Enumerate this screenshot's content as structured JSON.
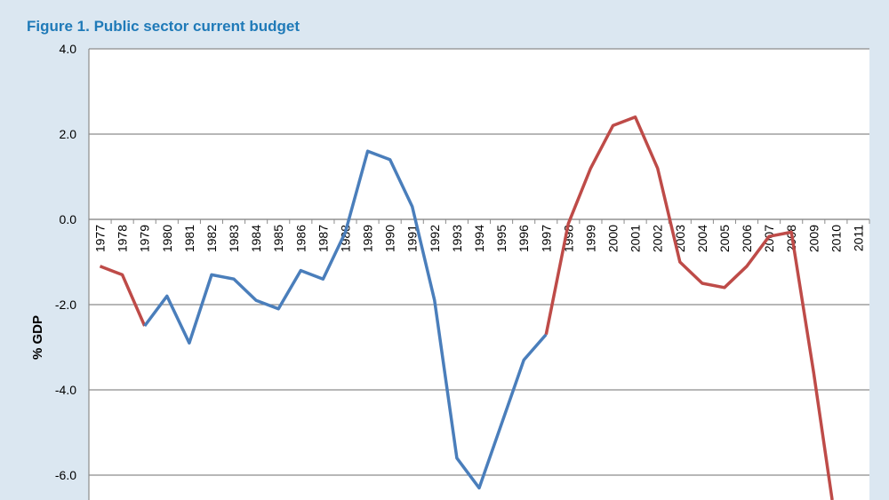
{
  "chart_data": {
    "type": "line",
    "title": "Figure 1. Public sector current budget",
    "xlabel": "",
    "ylabel": "% GDP",
    "ylim": [
      -8.0,
      4.0
    ],
    "yticks": [
      "4.0",
      "2.0",
      "0.0",
      "-2.0",
      "-4.0",
      "-6.0"
    ],
    "ytick_values": [
      4,
      2,
      0,
      -2,
      -4,
      -6
    ],
    "grid": true,
    "x": [
      "1977",
      "1978",
      "1979",
      "1980",
      "1981",
      "1982",
      "1983",
      "1984",
      "1985",
      "1986",
      "1987",
      "1988",
      "1989",
      "1990",
      "1991",
      "1992",
      "1993",
      "1994",
      "1995",
      "1996",
      "1997",
      "1998",
      "1999",
      "2000",
      "2001",
      "2002",
      "2003",
      "2004",
      "2005",
      "2006",
      "2007",
      "2008",
      "2009",
      "2010",
      "2011"
    ],
    "values": [
      -1.1,
      -1.3,
      -2.5,
      -1.8,
      -2.9,
      -1.3,
      -1.4,
      -1.9,
      -2.1,
      -1.2,
      -1.4,
      -0.3,
      1.6,
      1.4,
      0.3,
      -1.9,
      -5.6,
      -6.3,
      -4.8,
      -3.3,
      -2.7,
      -0.1,
      1.2,
      2.2,
      2.4,
      1.2,
      -1.0,
      -1.5,
      -1.6,
      -1.1,
      -0.4,
      -0.3,
      -3.6,
      -7.2,
      null
    ],
    "segments": [
      {
        "from": "1977",
        "to": "1979",
        "color": "#be4b48"
      },
      {
        "from": "1979",
        "to": "1997",
        "color": "#4a7ebb"
      },
      {
        "from": "1997",
        "to": "2010",
        "color": "#be4b48"
      }
    ]
  }
}
